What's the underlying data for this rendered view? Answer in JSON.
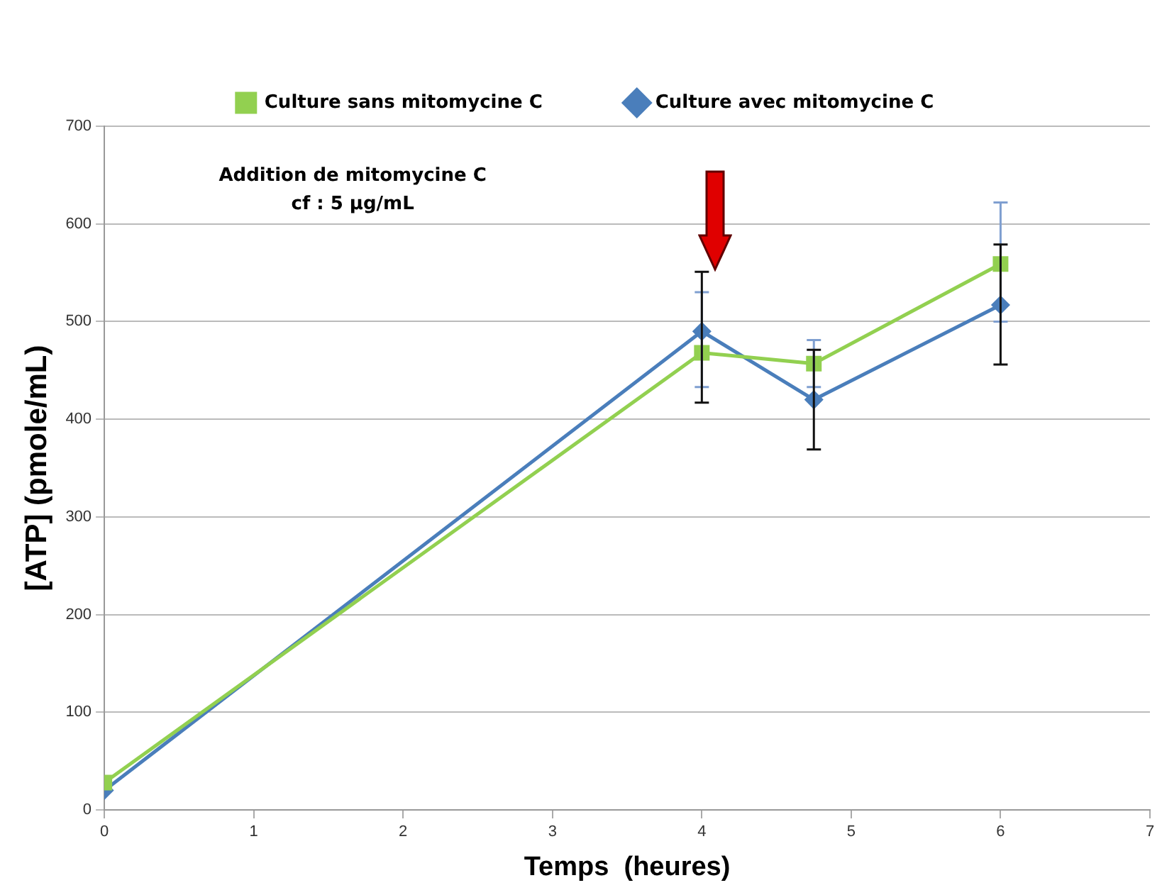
{
  "chart_data": {
    "type": "line",
    "xlabel": "Temps  (heures)",
    "ylabel": "[ATP] (pmole/mL)",
    "annotations": [
      "Addition de mitomycine C\ncf : 5 µg/mL"
    ],
    "xlim": [
      0,
      7
    ],
    "xticks": [
      0,
      1,
      2,
      3,
      4,
      5,
      6,
      7
    ],
    "ylim": [
      0,
      700
    ],
    "yticks": [
      0,
      100,
      200,
      300,
      400,
      500,
      600,
      700
    ],
    "grid": "y",
    "legend": "top",
    "series": [
      {
        "name": "Culture sans mitomycine C",
        "color": "#92d050",
        "marker": "square",
        "x": [
          0,
          4,
          4.75,
          6
        ],
        "values": [
          28,
          468,
          457,
          559
        ],
        "errors": [
          null,
          [
            433,
            530
          ],
          [
            433,
            481
          ],
          [
            500,
            622
          ]
        ]
      },
      {
        "name": "Culture avec mitomycine C",
        "color": "#4a7ebb",
        "marker": "diamond",
        "x": [
          0,
          4,
          4.75,
          6
        ],
        "values": [
          20,
          490,
          420,
          517
        ],
        "errors": [
          null,
          [
            417,
            551
          ],
          [
            369,
            471
          ],
          [
            456,
            579
          ]
        ]
      }
    ]
  }
}
